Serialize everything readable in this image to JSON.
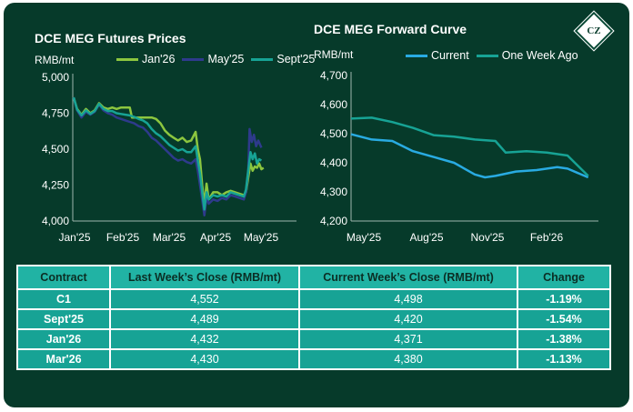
{
  "colors": {
    "background": "#063a2a",
    "jan26": "#8cc63f",
    "may25": "#2e3a8c",
    "sept25": "#17a395",
    "current": "#29abe2",
    "week_ago": "#17a395",
    "table_header": "#21b3a4",
    "table_cell": "#17a395"
  },
  "logo": {
    "text": "CZ",
    "icon": "cz-diamond-logo"
  },
  "chart_data": [
    {
      "type": "line",
      "title": "DCE MEG Futures Prices",
      "ylabel": "RMB/mt",
      "ylim": [
        4000,
        5000
      ],
      "yticks": [
        "4,000",
        "4,250",
        "4,500",
        "4,750",
        "5,000"
      ],
      "ytick_values": [
        4000,
        4250,
        4500,
        4750,
        5000
      ],
      "xticks": [
        "Jan'25",
        "Feb'25",
        "Mar'25",
        "Apr'25",
        "May'25"
      ],
      "xlim": [
        0,
        5.1
      ],
      "grid": false,
      "legend": "top",
      "series": [
        {
          "name": "Jan'26",
          "color": "#8cc63f",
          "points": [
            [
              0.02,
              4860
            ],
            [
              0.1,
              4780
            ],
            [
              0.2,
              4740
            ],
            [
              0.3,
              4780
            ],
            [
              0.4,
              4750
            ],
            [
              0.5,
              4770
            ],
            [
              0.6,
              4820
            ],
            [
              0.7,
              4790
            ],
            [
              0.8,
              4780
            ],
            [
              0.9,
              4790
            ],
            [
              1.0,
              4780
            ],
            [
              1.1,
              4790
            ],
            [
              1.2,
              4790
            ],
            [
              1.3,
              4790
            ],
            [
              1.35,
              4720
            ],
            [
              1.5,
              4720
            ],
            [
              1.6,
              4720
            ],
            [
              1.7,
              4720
            ],
            [
              1.8,
              4720
            ],
            [
              1.9,
              4710
            ],
            [
              2.0,
              4680
            ],
            [
              2.1,
              4630
            ],
            [
              2.2,
              4600
            ],
            [
              2.3,
              4580
            ],
            [
              2.4,
              4560
            ],
            [
              2.5,
              4580
            ],
            [
              2.6,
              4550
            ],
            [
              2.7,
              4560
            ],
            [
              2.8,
              4620
            ],
            [
              2.85,
              4500
            ],
            [
              2.9,
              4430
            ],
            [
              2.95,
              4250
            ],
            [
              3.0,
              4120
            ],
            [
              3.05,
              4260
            ],
            [
              3.1,
              4150
            ],
            [
              3.2,
              4200
            ],
            [
              3.3,
              4200
            ],
            [
              3.4,
              4180
            ],
            [
              3.5,
              4200
            ],
            [
              3.6,
              4210
            ],
            [
              3.7,
              4200
            ],
            [
              3.8,
              4190
            ],
            [
              3.9,
              4180
            ],
            [
              3.95,
              4200
            ],
            [
              4.0,
              4300
            ],
            [
              4.05,
              4400
            ],
            [
              4.1,
              4350
            ],
            [
              4.15,
              4380
            ],
            [
              4.2,
              4370
            ],
            [
              4.25,
              4400
            ],
            [
              4.3,
              4360
            ],
            [
              4.35,
              4370
            ]
          ]
        },
        {
          "name": "May'25",
          "color": "#2e3a8c",
          "points": [
            [
              0.02,
              4860
            ],
            [
              0.1,
              4770
            ],
            [
              0.2,
              4720
            ],
            [
              0.3,
              4760
            ],
            [
              0.4,
              4740
            ],
            [
              0.5,
              4760
            ],
            [
              0.6,
              4810
            ],
            [
              0.7,
              4770
            ],
            [
              0.8,
              4750
            ],
            [
              0.9,
              4740
            ],
            [
              1.0,
              4720
            ],
            [
              1.1,
              4710
            ],
            [
              1.2,
              4700
            ],
            [
              1.3,
              4690
            ],
            [
              1.4,
              4680
            ],
            [
              1.5,
              4660
            ],
            [
              1.6,
              4650
            ],
            [
              1.7,
              4620
            ],
            [
              1.8,
              4580
            ],
            [
              1.9,
              4560
            ],
            [
              2.0,
              4530
            ],
            [
              2.1,
              4500
            ],
            [
              2.2,
              4470
            ],
            [
              2.3,
              4440
            ],
            [
              2.4,
              4420
            ],
            [
              2.5,
              4430
            ],
            [
              2.6,
              4410
            ],
            [
              2.7,
              4400
            ],
            [
              2.8,
              4430
            ],
            [
              2.85,
              4350
            ],
            [
              2.9,
              4250
            ],
            [
              2.95,
              4150
            ],
            [
              3.0,
              4040
            ],
            [
              3.05,
              4170
            ],
            [
              3.1,
              4120
            ],
            [
              3.2,
              4150
            ],
            [
              3.3,
              4140
            ],
            [
              3.4,
              4160
            ],
            [
              3.5,
              4150
            ],
            [
              3.6,
              4180
            ],
            [
              3.7,
              4170
            ],
            [
              3.8,
              4160
            ],
            [
              3.9,
              4150
            ],
            [
              3.95,
              4200
            ],
            [
              4.0,
              4350
            ],
            [
              4.03,
              4640
            ],
            [
              4.08,
              4550
            ],
            [
              4.13,
              4600
            ],
            [
              4.18,
              4520
            ],
            [
              4.23,
              4560
            ],
            [
              4.3,
              4510
            ]
          ]
        },
        {
          "name": "Sept'25",
          "color": "#17a395",
          "points": [
            [
              0.02,
              4860
            ],
            [
              0.1,
              4775
            ],
            [
              0.2,
              4735
            ],
            [
              0.3,
              4770
            ],
            [
              0.4,
              4745
            ],
            [
              0.5,
              4765
            ],
            [
              0.6,
              4815
            ],
            [
              0.7,
              4780
            ],
            [
              0.8,
              4765
            ],
            [
              0.9,
              4765
            ],
            [
              1.0,
              4750
            ],
            [
              1.1,
              4745
            ],
            [
              1.2,
              4740
            ],
            [
              1.3,
              4735
            ],
            [
              1.4,
              4725
            ],
            [
              1.5,
              4710
            ],
            [
              1.6,
              4700
            ],
            [
              1.7,
              4680
            ],
            [
              1.8,
              4640
            ],
            [
              1.9,
              4610
            ],
            [
              2.0,
              4590
            ],
            [
              2.1,
              4560
            ],
            [
              2.2,
              4530
            ],
            [
              2.3,
              4510
            ],
            [
              2.4,
              4490
            ],
            [
              2.5,
              4500
            ],
            [
              2.6,
              4480
            ],
            [
              2.7,
              4480
            ],
            [
              2.8,
              4520
            ],
            [
              2.85,
              4420
            ],
            [
              2.9,
              4330
            ],
            [
              2.95,
              4200
            ],
            [
              3.0,
              4080
            ],
            [
              3.05,
              4200
            ],
            [
              3.1,
              4150
            ],
            [
              3.2,
              4180
            ],
            [
              3.3,
              4170
            ],
            [
              3.4,
              4180
            ],
            [
              3.5,
              4170
            ],
            [
              3.6,
              4200
            ],
            [
              3.7,
              4190
            ],
            [
              3.8,
              4180
            ],
            [
              3.9,
              4170
            ],
            [
              3.95,
              4220
            ],
            [
              4.0,
              4350
            ],
            [
              4.05,
              4480
            ],
            [
              4.1,
              4430
            ],
            [
              4.15,
              4470
            ],
            [
              4.2,
              4400
            ],
            [
              4.25,
              4430
            ],
            [
              4.3,
              4420
            ]
          ]
        }
      ]
    },
    {
      "type": "line",
      "title": "DCE MEG Forward Curve",
      "ylabel": "RMB/mt",
      "ylim": [
        4200,
        4700
      ],
      "yticks": [
        "4,200",
        "4,300",
        "4,400",
        "4,500",
        "4,600",
        "4,700"
      ],
      "ytick_values": [
        4200,
        4300,
        4400,
        4500,
        4600,
        4700
      ],
      "xticks": [
        "May'25",
        "Aug'25",
        "Nov'25",
        "Feb'26"
      ],
      "xlim": [
        0,
        12
      ],
      "grid": false,
      "legend": "top-right",
      "series": [
        {
          "name": "Current",
          "color": "#29abe2",
          "points": [
            [
              0,
              4498
            ],
            [
              1,
              4480
            ],
            [
              2,
              4475
            ],
            [
              3,
              4440
            ],
            [
              4,
              4420
            ],
            [
              5,
              4400
            ],
            [
              6,
              4360
            ],
            [
              6.5,
              4350
            ],
            [
              7,
              4355
            ],
            [
              8,
              4370
            ],
            [
              9,
              4375
            ],
            [
              10,
              4385
            ],
            [
              10.5,
              4380
            ],
            [
              11.5,
              4350
            ]
          ]
        },
        {
          "name": "One Week Ago",
          "color": "#17a395",
          "points": [
            [
              0,
              4552
            ],
            [
              1,
              4555
            ],
            [
              2,
              4540
            ],
            [
              3,
              4520
            ],
            [
              4,
              4495
            ],
            [
              5,
              4490
            ],
            [
              6,
              4480
            ],
            [
              7,
              4475
            ],
            [
              7.5,
              4435
            ],
            [
              8.5,
              4440
            ],
            [
              9.5,
              4435
            ],
            [
              10.5,
              4425
            ],
            [
              11.5,
              4355
            ]
          ]
        }
      ]
    }
  ],
  "table": {
    "headers": [
      "Contract",
      "Last Week’s Close (RMB/mt)",
      "Current Week’s Close (RMB/mt)",
      "Change"
    ],
    "rows": [
      [
        "C1",
        "4,552",
        "4,498",
        "-1.19%"
      ],
      [
        "Sept'25",
        "4,489",
        "4,420",
        "-1.54%"
      ],
      [
        "Jan'26",
        "4,432",
        "4,371",
        "-1.38%"
      ],
      [
        "Mar'26",
        "4,430",
        "4,380",
        "-1.13%"
      ]
    ]
  }
}
